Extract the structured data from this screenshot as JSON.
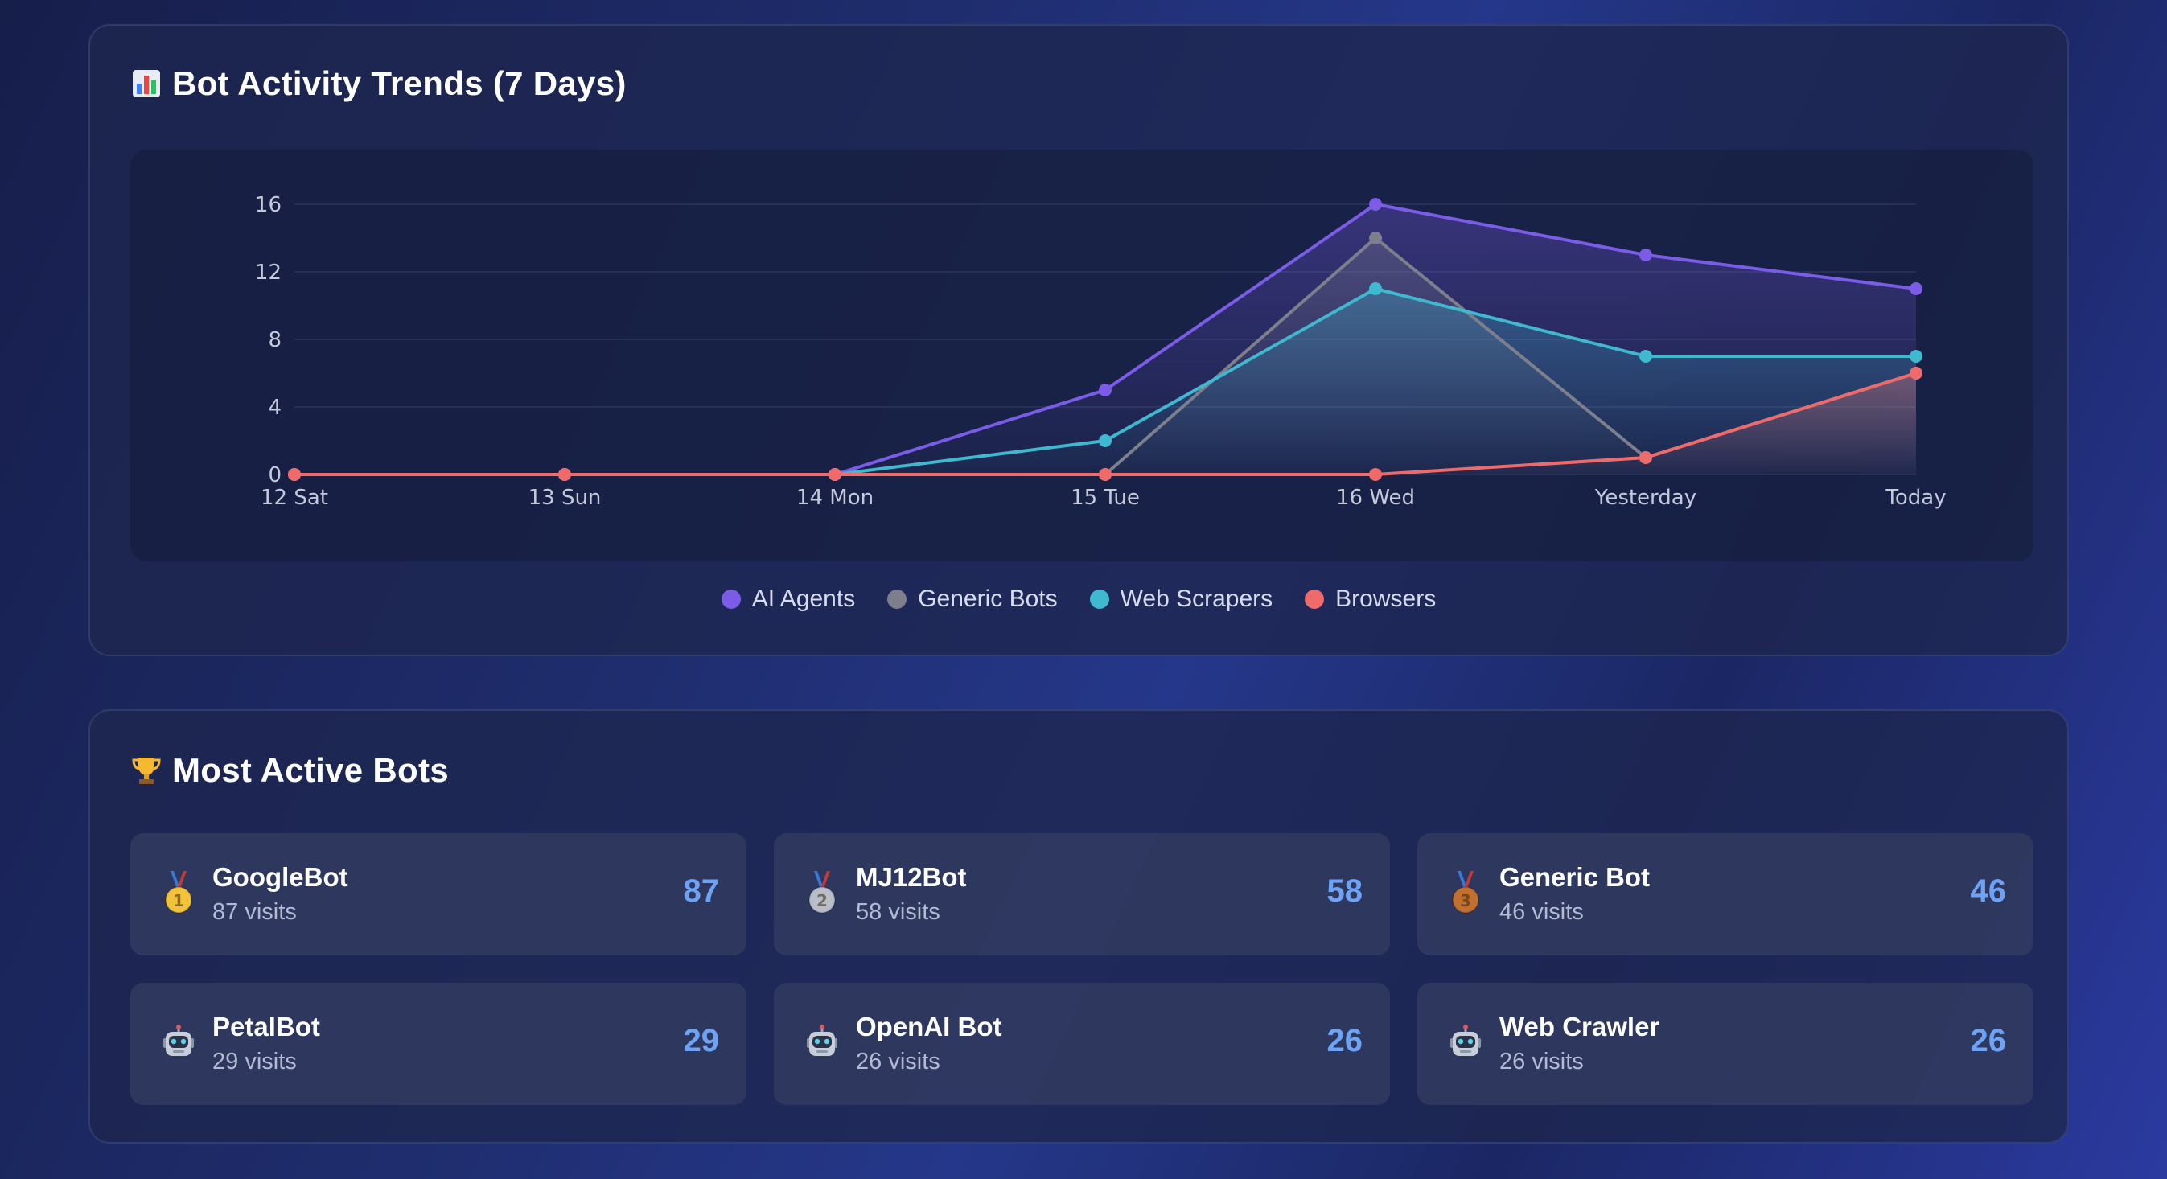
{
  "trends": {
    "title": "Bot Activity Trends (7 Days)",
    "icon": "bar-chart-icon"
  },
  "chart_data": {
    "type": "line",
    "x": [
      "12 Sat",
      "13 Sun",
      "14 Mon",
      "15 Tue",
      "16 Wed",
      "Yesterday",
      "Today"
    ],
    "yticks": [
      0,
      4,
      8,
      12,
      16
    ],
    "ylim": [
      0,
      16
    ],
    "grid": true,
    "legend_position": "bottom-center",
    "series": [
      {
        "name": "AI Agents",
        "color": "#7b5ce6",
        "values": [
          0,
          0,
          0,
          5,
          16,
          13,
          11
        ]
      },
      {
        "name": "Generic Bots",
        "color": "#7d7f8c",
        "values": [
          0,
          0,
          0,
          0,
          14,
          1,
          6
        ]
      },
      {
        "name": "Web Scrapers",
        "color": "#3fb8d0",
        "values": [
          0,
          0,
          0,
          2,
          11,
          7,
          7
        ]
      },
      {
        "name": "Browsers",
        "color": "#ee6b6b",
        "values": [
          0,
          0,
          0,
          0,
          0,
          1,
          6
        ]
      }
    ]
  },
  "bots": {
    "title": "Most Active Bots",
    "icon": "trophy-icon",
    "items": [
      {
        "name": "GoogleBot",
        "visits": "87 visits",
        "count": "87",
        "icon": "gold-medal-icon",
        "rank": "1"
      },
      {
        "name": "MJ12Bot",
        "visits": "58 visits",
        "count": "58",
        "icon": "silver-medal-icon",
        "rank": "2"
      },
      {
        "name": "Generic Bot",
        "visits": "46 visits",
        "count": "46",
        "icon": "bronze-medal-icon",
        "rank": "3"
      },
      {
        "name": "PetalBot",
        "visits": "29 visits",
        "count": "29",
        "icon": "robot-icon"
      },
      {
        "name": "OpenAI Bot",
        "visits": "26 visits",
        "count": "26",
        "icon": "robot-icon"
      },
      {
        "name": "Web Crawler",
        "visits": "26 visits",
        "count": "26",
        "icon": "robot-icon"
      }
    ]
  }
}
